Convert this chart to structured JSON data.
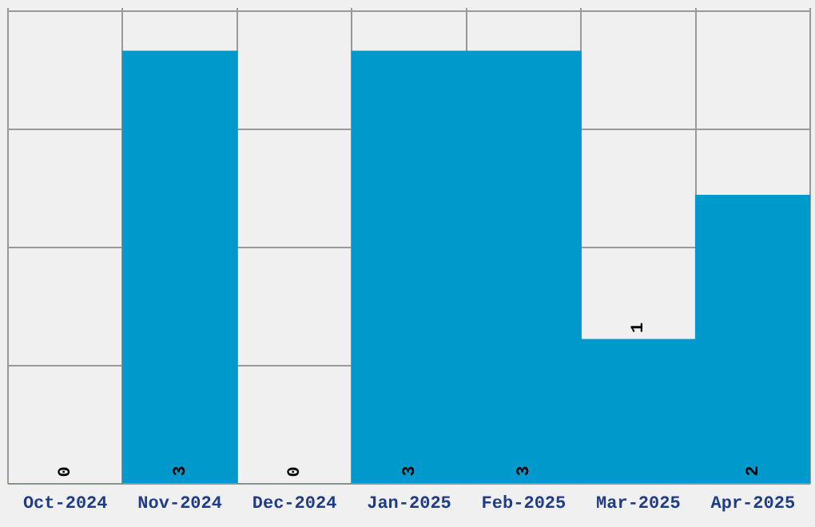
{
  "chart_data": {
    "type": "bar",
    "categories": [
      "Oct-2024",
      "Nov-2024",
      "Dec-2024",
      "Jan-2025",
      "Feb-2025",
      "Mar-2025",
      "Apr-2025"
    ],
    "values": [
      0,
      3,
      0,
      3,
      3,
      1,
      2
    ],
    "color": "#0099cc",
    "data_labels": true,
    "grid": true,
    "ylim": [
      0,
      3.3
    ],
    "yticks": [
      {
        "value": 0,
        "label": null
      },
      {
        "value": 0.82,
        "label": null
      },
      {
        "value": 1.64,
        "label": null
      },
      {
        "value": 2.46,
        "label": null
      },
      {
        "value": 3.28,
        "label": null
      }
    ],
    "tick_labels": "x"
  }
}
